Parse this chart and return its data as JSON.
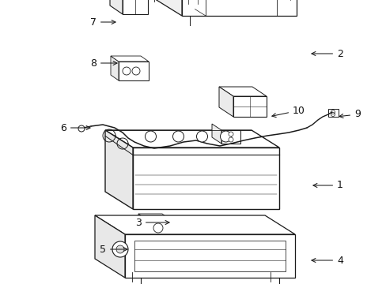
{
  "bg_color": "#ffffff",
  "line_color": "#1a1a1a",
  "text_color": "#111111",
  "fig_width": 4.89,
  "fig_height": 3.6,
  "dpi": 100
}
